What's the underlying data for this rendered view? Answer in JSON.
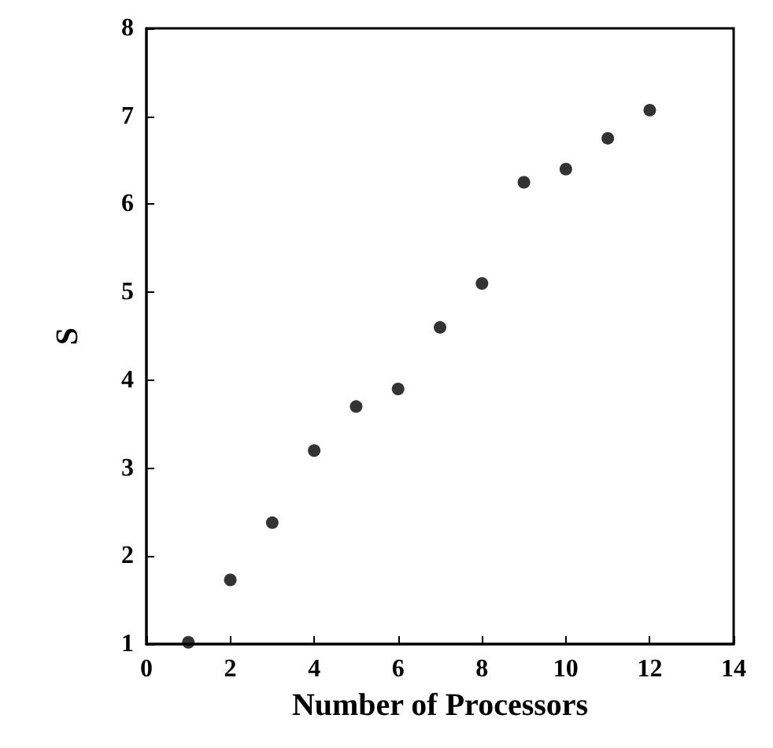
{
  "chart_data": {
    "type": "scatter",
    "xlabel": "Number of Processors",
    "ylabel": "S",
    "x": [
      1,
      2,
      3,
      4,
      5,
      6,
      7,
      8,
      9,
      10,
      11,
      12
    ],
    "series": [
      {
        "color": "#000000",
        "values": [
          1.02,
          1.73,
          2.38,
          3.2,
          3.7,
          3.9,
          4.6,
          5.1,
          6.25,
          6.4,
          6.75,
          7.07
        ]
      }
    ],
    "xlim": [
      0,
      14
    ],
    "xticks": [
      0,
      2,
      4,
      6,
      8,
      10,
      12,
      14
    ],
    "ylim": [
      1,
      8
    ],
    "yticks": [
      1,
      2,
      3,
      4,
      5,
      6,
      7,
      8
    ],
    "marker": "circle"
  }
}
